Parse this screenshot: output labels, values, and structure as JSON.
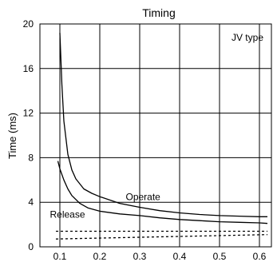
{
  "chart_data": {
    "type": "line",
    "title": "Timing",
    "xlabel": "",
    "ylabel": "Time (ms)",
    "xlim": [
      0.05,
      0.63
    ],
    "ylim": [
      0,
      20
    ],
    "xticks": [
      0.1,
      0.2,
      0.3,
      0.4,
      0.5,
      0.6
    ],
    "yticks": [
      0,
      4,
      8,
      12,
      16,
      20
    ],
    "grid": true,
    "series": [
      {
        "name": "Operate",
        "style": "solid",
        "x": [
          0.1,
          0.105,
          0.11,
          0.12,
          0.13,
          0.14,
          0.16,
          0.18,
          0.2,
          0.25,
          0.3,
          0.35,
          0.4,
          0.45,
          0.5,
          0.55,
          0.6,
          0.62
        ],
        "y": [
          19.2,
          14.6,
          11.3,
          8.3,
          6.9,
          6.1,
          5.2,
          4.8,
          4.5,
          3.9,
          3.55,
          3.25,
          3.05,
          2.9,
          2.8,
          2.75,
          2.7,
          2.7
        ]
      },
      {
        "name": "Release",
        "style": "solid",
        "x": [
          0.095,
          0.1,
          0.11,
          0.12,
          0.13,
          0.15,
          0.17,
          0.2,
          0.25,
          0.3,
          0.35,
          0.4,
          0.45,
          0.5,
          0.55,
          0.6,
          0.62
        ],
        "y": [
          7.7,
          7.0,
          6.0,
          5.2,
          4.6,
          3.9,
          3.5,
          3.2,
          2.95,
          2.8,
          2.6,
          2.45,
          2.35,
          2.25,
          2.2,
          2.15,
          2.1
        ]
      },
      {
        "name": "",
        "style": "dashed",
        "x": [
          0.09,
          0.62
        ],
        "y": [
          1.4,
          1.4
        ]
      },
      {
        "name": "",
        "style": "dashed",
        "x": [
          0.09,
          0.62
        ],
        "y": [
          0.7,
          1.1
        ]
      }
    ],
    "annotations": [
      {
        "text": "JV type",
        "x": 0.61,
        "y": 18.5
      },
      {
        "text": "Operate",
        "x": 0.265,
        "y": 4.2
      },
      {
        "text": "Release",
        "x": 0.075,
        "y": 2.6
      }
    ],
    "colors": {
      "line": "#000000",
      "grid": "#000000",
      "background": "#ffffff"
    }
  }
}
